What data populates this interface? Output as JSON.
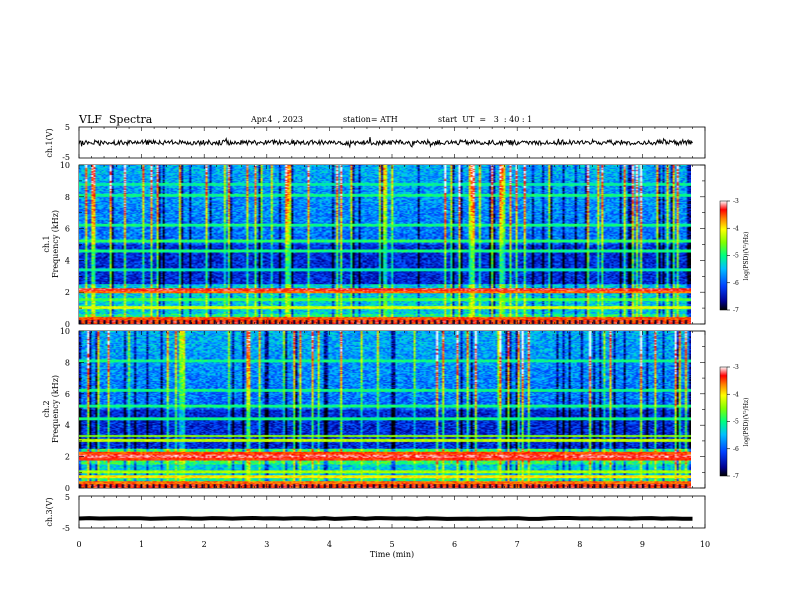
{
  "header": {
    "title": "VLF  Spectra",
    "date": "Apr.4  , 2023",
    "station": "station= ATH",
    "start": "start  UT  =   3  : 40 : 1"
  },
  "chart_data": [
    {
      "type": "line",
      "panel": "ch1-waveform",
      "ylabel": "ch.1(V)",
      "yticks": [
        "5",
        "-5"
      ],
      "ylim": [
        -5,
        5
      ],
      "xlim": [
        0,
        10
      ],
      "description_values": {
        "mean": 0.0,
        "amplitude": 0.8
      }
    },
    {
      "type": "heatmap",
      "panel": "ch1-spectrogram",
      "ylabel": [
        "ch.1",
        "Frequency  (kHz)"
      ],
      "yticks": [
        "0",
        "2",
        "4",
        "6",
        "8",
        "10"
      ],
      "ylim": [
        0,
        10
      ],
      "xlim": [
        0,
        9.8
      ],
      "colorbar": {
        "label": "log(PSD)(V²/Hz)",
        "ticks": [
          "-3",
          "-4",
          "-5",
          "-6",
          "-7"
        ],
        "range": [
          -7,
          -3
        ]
      },
      "bands_khz": [
        {
          "f": 0.3,
          "v": -3.5
        },
        {
          "f": 1.0,
          "v": -4.2
        },
        {
          "f": 1.5,
          "v": -4.8
        },
        {
          "f": 2.0,
          "v": -3.6
        },
        {
          "f": 2.15,
          "v": -3.3
        },
        {
          "f": 3.4,
          "v": -5.2
        },
        {
          "f": 4.6,
          "v": -5.0
        },
        {
          "f": 5.2,
          "v": -4.9
        },
        {
          "f": 6.2,
          "v": -5.0
        },
        {
          "f": 8.1,
          "v": -5.0
        },
        {
          "f": 8.8,
          "v": -5.1
        }
      ]
    },
    {
      "type": "heatmap",
      "panel": "ch2-spectrogram",
      "ylabel": [
        "ch.2",
        "Frequency  (kHz)"
      ],
      "yticks": [
        "0",
        "2",
        "4",
        "6",
        "8",
        "10"
      ],
      "ylim": [
        0,
        10
      ],
      "xlim": [
        0,
        9.8
      ],
      "colorbar": {
        "label": "log(PSD)(V²/Hz)",
        "ticks": [
          "-3",
          "-4",
          "-5",
          "-6",
          "-7"
        ],
        "range": [
          -7,
          -3
        ]
      },
      "bands_khz": [
        {
          "f": 0.3,
          "v": -3.6
        },
        {
          "f": 0.7,
          "v": -4.0
        },
        {
          "f": 1.0,
          "v": -4.4
        },
        {
          "f": 1.8,
          "v": -3.4
        },
        {
          "f": 2.0,
          "v": -3.2
        },
        {
          "f": 2.2,
          "v": -3.5
        },
        {
          "f": 3.0,
          "v": -4.3
        },
        {
          "f": 3.3,
          "v": -4.5
        },
        {
          "f": 4.4,
          "v": -5.0
        },
        {
          "f": 5.2,
          "v": -5.0
        },
        {
          "f": 6.2,
          "v": -5.0
        },
        {
          "f": 8.1,
          "v": -5.0
        }
      ]
    },
    {
      "type": "line",
      "panel": "ch3-waveform",
      "ylabel": "ch.3(V)",
      "yticks": [
        "5",
        "-5"
      ],
      "ylim": [
        -5,
        5
      ],
      "xlim": [
        0,
        10
      ],
      "xlabel": "Time  (min)",
      "xticks": [
        "0",
        "1",
        "2",
        "3",
        "4",
        "5",
        "6",
        "7",
        "8",
        "9",
        "10"
      ],
      "description_values": {
        "mean": -2.0,
        "amplitude": 0.15
      }
    }
  ]
}
